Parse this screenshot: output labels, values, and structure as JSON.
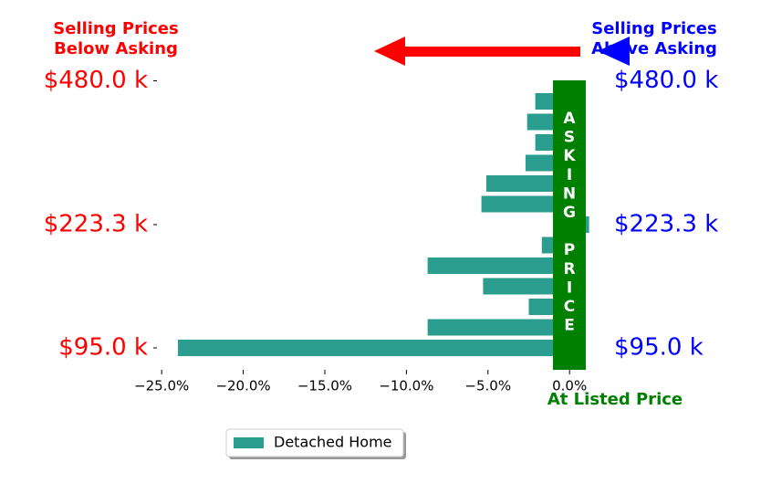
{
  "chart_data": {
    "type": "barh",
    "title_left": [
      "Selling Prices",
      "Below Asking"
    ],
    "title_right": [
      "Selling Prices",
      "Above Asking"
    ],
    "center_label": "ASKING PRICE",
    "x_annotation": "At Listed Price",
    "categories": [
      "$95.0 k",
      null,
      null,
      null,
      null,
      null,
      "$223.3 k",
      null,
      null,
      null,
      null,
      null,
      null,
      "$480.0 k"
    ],
    "series": [
      {
        "name": "Detached Home",
        "color": "#2a9d8f",
        "values": [
          -24.0,
          -8.7,
          -2.5,
          -5.3,
          -8.7,
          -1.7,
          1.2,
          -5.4,
          -5.1,
          -2.7,
          -2.1,
          -2.6,
          -2.1,
          null
        ]
      }
    ],
    "xlim": [
      -25.4,
      1.5
    ],
    "xticks": [
      {
        "value": -25,
        "label": "−25.0%"
      },
      {
        "value": -20,
        "label": "−20.0%"
      },
      {
        "value": -15,
        "label": "−15.0%"
      },
      {
        "value": -10,
        "label": "−10.0%"
      },
      {
        "value": -5,
        "label": "−5.0%"
      },
      {
        "value": 0,
        "label": "0.0%"
      }
    ],
    "left_label_color": "#ff0000",
    "right_label_color": "#0000ff",
    "legend": "lower center"
  }
}
